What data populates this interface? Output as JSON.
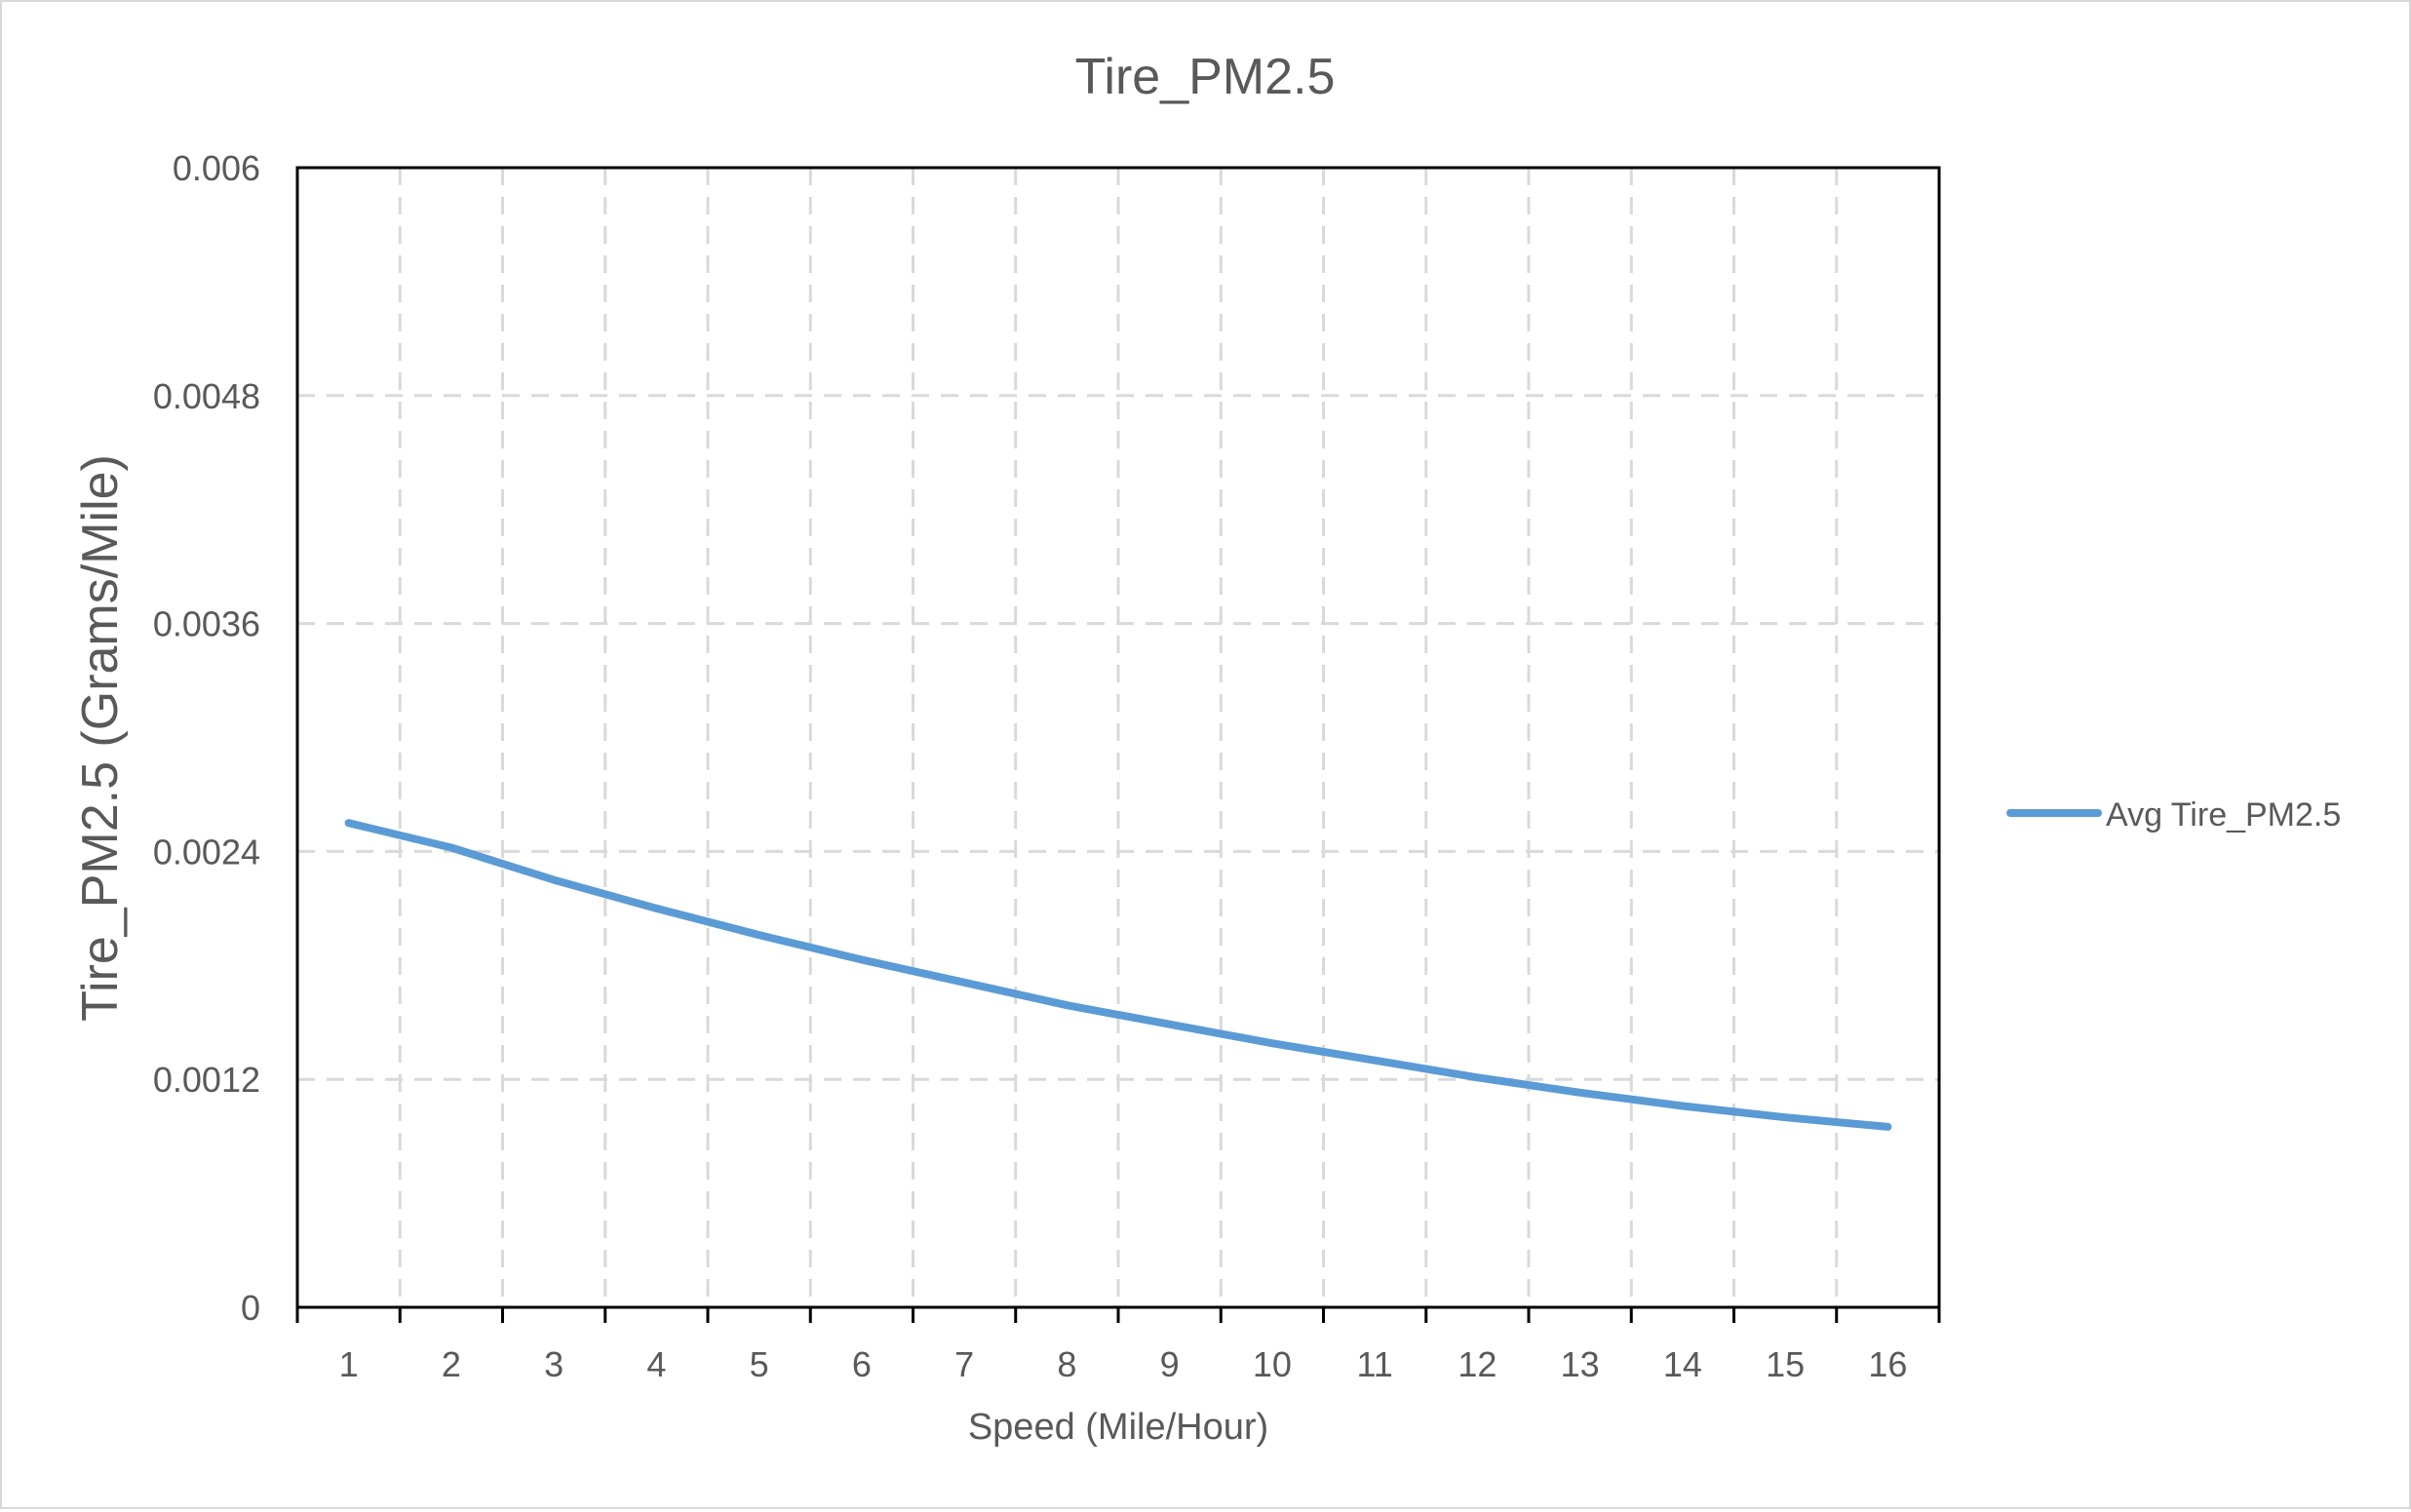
{
  "chart_data": {
    "type": "line",
    "title": "Tire_PM2.5",
    "xlabel": "Speed (Mile/Hour)",
    "ylabel": "Tire_PM2.5  (Grams/Mile)",
    "categories": [
      "1",
      "2",
      "3",
      "4",
      "5",
      "6",
      "7",
      "8",
      "9",
      "10",
      "11",
      "12",
      "13",
      "14",
      "15",
      "16"
    ],
    "yticks": [
      "0",
      "0.0012",
      "0.0024",
      "0.0036",
      "0.0048",
      "0.006"
    ],
    "ylim": [
      0,
      0.006
    ],
    "grid": true,
    "legend": "right",
    "series": [
      {
        "name": "Avg Tire_PM2.5",
        "color": "#5b9bd5",
        "values": [
          0.00255,
          0.00242,
          0.00225,
          0.0021,
          0.00196,
          0.00183,
          0.00171,
          0.00159,
          0.00149,
          0.00139,
          0.0013,
          0.00121,
          0.00113,
          0.00106,
          0.001,
          0.00095
        ]
      }
    ]
  }
}
